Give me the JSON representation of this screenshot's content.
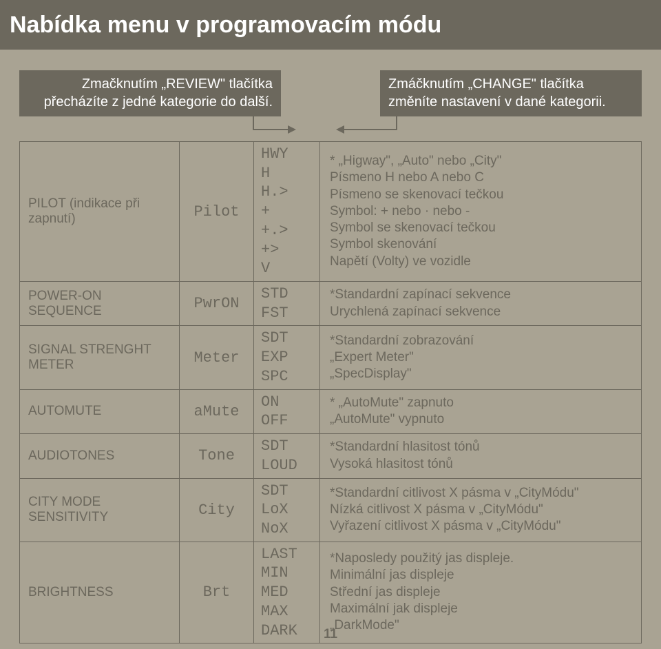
{
  "colors": {
    "page_bg": "#a9a393",
    "title_bg": "#6c685d",
    "title_text": "#ffffff",
    "box_bg": "#6c685d",
    "box_text": "#ffffff",
    "border": "#6c685d",
    "body_text": "#6c685d",
    "mono_text": "#6c685d",
    "pagenum_text": "#6c685d",
    "arrow": "#6c685d"
  },
  "title": "Nabídka menu v programovacím módu",
  "box_left": "Zmačknutím „REVIEW\" tlačítka\npřecházíte z jedné kategorie do další.",
  "box_right": "Zmáčknutím „CHANGE\" tlačítka\nzměníte nastavení v dané kategorii.",
  "rows": [
    {
      "label": "PILOT (indikace při zapnutí)",
      "code": "Pilot",
      "options": [
        "HWY",
        "H",
        "H.>",
        "+",
        "+.>",
        "+>",
        "V"
      ],
      "desc": [
        "* „Higway\", „Auto\" nebo „City\"",
        "Písmeno H nebo A nebo C",
        "Písmeno se skenovací tečkou",
        "Symbol: + nebo · nebo -",
        "Symbol se skenovací tečkou",
        "Symbol skenování",
        "Napětí (Volty) ve vozidle"
      ]
    },
    {
      "label": "POWER-ON SEQUENCE",
      "code": "PwrON",
      "options": [
        "STD",
        "FST"
      ],
      "desc": [
        "*Standardní zapínací sekvence",
        "Urychlená zapínací sekvence"
      ]
    },
    {
      "label": "SIGNAL STRENGHT METER",
      "code": "Meter",
      "options": [
        "SDT",
        "EXP",
        "SPC"
      ],
      "desc": [
        "*Standardní zobrazování",
        "„Expert Meter\"",
        "„SpecDisplay\""
      ]
    },
    {
      "label": "AUTOMUTE",
      "code": "aMute",
      "options": [
        "ON",
        "OFF"
      ],
      "desc": [
        "* „AutoMute\" zapnuto",
        "„AutoMute\" vypnuto"
      ]
    },
    {
      "label": "AUDIOTONES",
      "code": "Tone",
      "options": [
        "SDT",
        "LOUD"
      ],
      "desc": [
        "*Standardní hlasitost tónů",
        "Vysoká hlasitost tónů"
      ]
    },
    {
      "label": "CITY MODE SENSITIVITY",
      "code": "City",
      "options": [
        "SDT",
        "LoX",
        "NoX"
      ],
      "desc": [
        "*Standardní citlivost X pásma v „CityMódu\"",
        "Nízká citlivost X pásma v „CityMódu\"",
        "Vyřazení citlivost X pásma v „CityMódu\""
      ]
    },
    {
      "label": "BRIGHTNESS",
      "code": "Brt",
      "options": [
        "LAST",
        "MIN",
        "MED",
        "MAX",
        "DARK"
      ],
      "desc": [
        "*Naposledy použitý jas displeje.",
        "Minimální jas displeje",
        "Střední jas displeje",
        "Maximální jak displeje",
        "„DarkMode\""
      ]
    }
  ],
  "page_number": "11"
}
